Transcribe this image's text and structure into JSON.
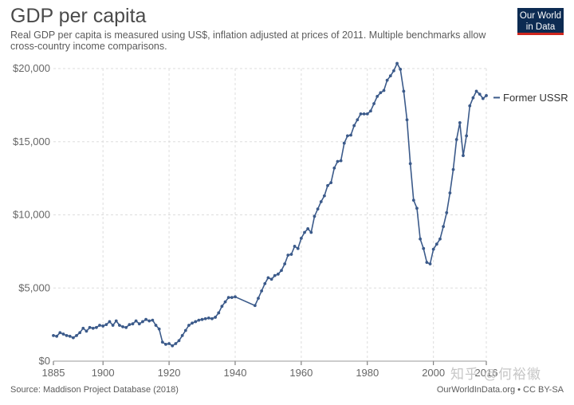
{
  "header": {
    "title": "GDP per capita",
    "subtitle": "Real GDP per capita is measured using US$, inflation adjusted at prices of 2011. Multiple benchmarks allow cross-country income comparisons.",
    "logo_line1": "Our World",
    "logo_line2": "in Data"
  },
  "footer": {
    "source": "Source: Maddison Project Database (2018)",
    "credit": "OurWorldInData.org • CC BY-SA"
  },
  "watermark": "知乎 @何裕徽",
  "colors": {
    "series": "#3b5a8a",
    "grid": "#dddddd",
    "axis": "#666666",
    "logo_bg": "#0c2b52",
    "logo_accent": "#ce261e"
  },
  "chart_data": {
    "type": "line",
    "title": "GDP per capita",
    "xlabel": "",
    "ylabel": "",
    "xlim": [
      1885,
      2016
    ],
    "ylim": [
      0,
      20000
    ],
    "x_ticks": [
      1885,
      1900,
      1920,
      1940,
      1960,
      1980,
      2000,
      2016
    ],
    "y_ticks": [
      0,
      5000,
      10000,
      15000,
      20000
    ],
    "y_tick_labels": [
      "$0",
      "$5,000",
      "$10,000",
      "$15,000",
      "$20,000"
    ],
    "grid": "vertical and horizontal dashed",
    "legend": "right, inline label",
    "series": [
      {
        "name": "Former USSR",
        "x": [
          1885,
          1886,
          1887,
          1888,
          1889,
          1890,
          1891,
          1892,
          1893,
          1894,
          1895,
          1896,
          1897,
          1898,
          1899,
          1900,
          1901,
          1902,
          1903,
          1904,
          1905,
          1906,
          1907,
          1908,
          1909,
          1910,
          1911,
          1912,
          1913,
          1914,
          1915,
          1916,
          1917,
          1918,
          1919,
          1920,
          1921,
          1922,
          1923,
          1924,
          1925,
          1926,
          1927,
          1928,
          1929,
          1930,
          1931,
          1932,
          1933,
          1934,
          1935,
          1936,
          1937,
          1938,
          1939,
          1940,
          1946,
          1947,
          1948,
          1949,
          1950,
          1951,
          1952,
          1953,
          1954,
          1955,
          1956,
          1957,
          1958,
          1959,
          1960,
          1961,
          1962,
          1963,
          1964,
          1965,
          1966,
          1967,
          1968,
          1969,
          1970,
          1971,
          1972,
          1973,
          1974,
          1975,
          1976,
          1977,
          1978,
          1979,
          1980,
          1981,
          1982,
          1983,
          1984,
          1985,
          1986,
          1987,
          1988,
          1989,
          1990,
          1991,
          1992,
          1993,
          1994,
          1995,
          1996,
          1997,
          1998,
          1999,
          2000,
          2001,
          2002,
          2003,
          2004,
          2005,
          2006,
          2007,
          2008,
          2009,
          2010,
          2011,
          2012,
          2013,
          2014,
          2015,
          2016
        ],
        "y": [
          1750,
          1700,
          1950,
          1850,
          1750,
          1700,
          1600,
          1750,
          1950,
          2250,
          2050,
          2300,
          2250,
          2300,
          2450,
          2400,
          2500,
          2700,
          2450,
          2750,
          2450,
          2350,
          2300,
          2500,
          2550,
          2750,
          2550,
          2700,
          2850,
          2750,
          2800,
          2450,
          2200,
          1300,
          1150,
          1200,
          1050,
          1200,
          1400,
          1750,
          2100,
          2450,
          2600,
          2700,
          2800,
          2850,
          2900,
          2950,
          2900,
          3000,
          3300,
          3750,
          4050,
          4350,
          4350,
          4400,
          3800,
          4300,
          4800,
          5300,
          5700,
          5600,
          5850,
          5950,
          6200,
          6650,
          7250,
          7300,
          7850,
          7700,
          8400,
          8800,
          9050,
          8800,
          9900,
          10400,
          10900,
          11300,
          12000,
          12200,
          13200,
          13650,
          13700,
          14900,
          15400,
          15450,
          16100,
          16500,
          16900,
          16900,
          16900,
          17100,
          17600,
          18100,
          18350,
          18500,
          19200,
          19500,
          19850,
          20350,
          19950,
          18450,
          16500,
          13500,
          11000,
          10450,
          8350,
          7700,
          6750,
          6650,
          7650,
          8000,
          8350,
          9200,
          10150,
          11500,
          13100,
          15150,
          16300,
          14050,
          15400,
          17450,
          18000,
          18450,
          18250,
          17950,
          18150
        ]
      }
    ]
  }
}
